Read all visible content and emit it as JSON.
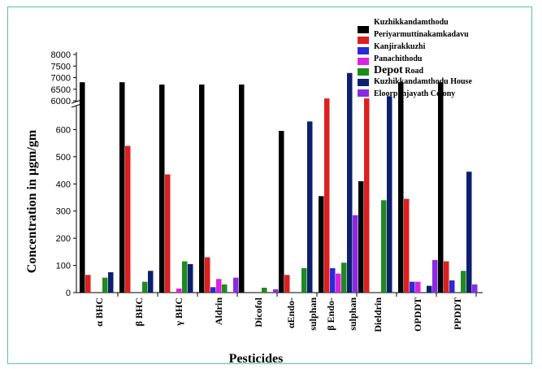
{
  "chart_data": {
    "type": "bar",
    "xlabel": "Pesticides",
    "ylabel": "Concentration in µgm/gm",
    "y_lower_range": [
      0,
      700
    ],
    "y_upper_range": [
      6000,
      8000
    ],
    "y_break": true,
    "lower_ticks": [
      "0",
      "100",
      "200",
      "300",
      "400",
      "500",
      "600"
    ],
    "upper_ticks": [
      "6000",
      "6500",
      "7000",
      "7500",
      "8000"
    ],
    "category_labels": [
      {
        "line1": "α BHC",
        "line2": ""
      },
      {
        "line1": "β BHC",
        "line2": ""
      },
      {
        "line1": "γ BHC",
        "line2": ""
      },
      {
        "line1": "Aldrin",
        "line2": ""
      },
      {
        "line1": "Dicofol",
        "line2": ""
      },
      {
        "line1": "αEndo-",
        "line2": "sulphan"
      },
      {
        "line1": "β Endo-",
        "line2": "sulphan"
      },
      {
        "line1": "Dieldrin",
        "line2": ""
      },
      {
        "line1": "OPDDT",
        "line2": ""
      },
      {
        "line1": "PPDDT",
        "line2": ""
      }
    ],
    "legend_position": "top-right",
    "series": [
      {
        "name": "Kuzhikkandamthodu",
        "color": "#000000",
        "values": [
          6800,
          6800,
          6700,
          6700,
          6700,
          595,
          355,
          410,
          6800,
          6800
        ]
      },
      {
        "name": "Periyarmuttinakamkadavu",
        "color": "#dd1f1f",
        "values": [
          65,
          540,
          435,
          130,
          0,
          65,
          6100,
          6100,
          345,
          115
        ]
      },
      {
        "name": "Kanjirakkuzhi",
        "color": "#2a2ad6",
        "values": [
          0,
          0,
          0,
          20,
          0,
          0,
          90,
          0,
          40,
          45
        ]
      },
      {
        "name": "Panachithodu",
        "color": "#dd22dd",
        "values": [
          0,
          0,
          15,
          50,
          0,
          0,
          70,
          0,
          40,
          0
        ]
      },
      {
        "name": "Depot Road",
        "color": "#1f8a1f",
        "values": [
          55,
          40,
          115,
          30,
          18,
          90,
          110,
          340,
          0,
          80
        ]
      },
      {
        "name": "Kuzhikkandamthodu House",
        "color": "#0d1f6e",
        "values": [
          75,
          80,
          105,
          0,
          0,
          630,
          7200,
          6200,
          25,
          445
        ]
      },
      {
        "name": "Eloorpanjayath Colony",
        "color": "#8a2be2",
        "values": [
          0,
          0,
          0,
          55,
          12,
          0,
          285,
          0,
          120,
          30
        ]
      }
    ]
  },
  "legend_labels": {
    "s0": "Kuzhikkandamthodu",
    "s1": "Periyarmuttinakamkadavu",
    "s2": "Kanjirakkuzhi",
    "s3": "Panachithodu",
    "s4_main": "Depot",
    "s4_rest": " Road",
    "s5": "Kuzhikkandamthodu  House",
    "s6": "Eloorpanjayath Colony"
  }
}
